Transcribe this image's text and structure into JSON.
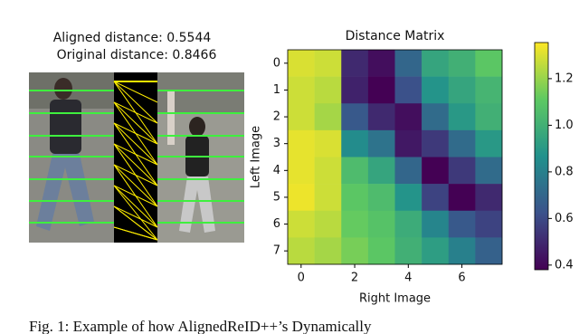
{
  "left_panel": {
    "aligned": "Aligned distance: 0.5544",
    "original": "Original distance: 0.8466"
  },
  "chart_data": {
    "type": "heatmap",
    "title": "Distance Matrix",
    "x_label": "Right Image",
    "y_label": "Left Image",
    "xlim": [
      -0.5,
      7.5
    ],
    "ylim": [
      7.5,
      -0.5
    ],
    "xticks": [
      0,
      2,
      4,
      6
    ],
    "yticks": [
      0,
      1,
      2,
      3,
      4,
      5,
      6,
      7
    ],
    "colormap": "viridis",
    "z": [
      [
        1.3,
        1.28,
        0.5,
        0.42,
        0.7,
        0.95,
        1.0,
        1.1
      ],
      [
        1.28,
        1.25,
        0.48,
        0.35,
        0.62,
        0.88,
        0.95,
        1.02
      ],
      [
        1.28,
        1.22,
        0.65,
        0.5,
        0.42,
        0.72,
        0.9,
        1.0
      ],
      [
        1.32,
        1.3,
        0.85,
        0.75,
        0.45,
        0.55,
        0.72,
        0.9
      ],
      [
        1.32,
        1.28,
        1.05,
        0.95,
        0.7,
        0.38,
        0.55,
        0.72
      ],
      [
        1.33,
        1.28,
        1.1,
        1.05,
        0.88,
        0.58,
        0.38,
        0.5
      ],
      [
        1.28,
        1.25,
        1.12,
        1.08,
        0.98,
        0.82,
        0.65,
        0.58
      ],
      [
        1.25,
        1.22,
        1.15,
        1.1,
        1.0,
        0.92,
        0.8,
        0.68
      ]
    ],
    "clim": [
      0.38,
      1.355
    ],
    "colorbar_ticks": [
      0.4,
      0.6,
      0.8,
      {
        "value": 1.0,
        "label": "1.0"
      },
      1.2
    ]
  },
  "caption": "Fig.  1:  Example  of  how  AlignedReID++’s  Dynamically"
}
